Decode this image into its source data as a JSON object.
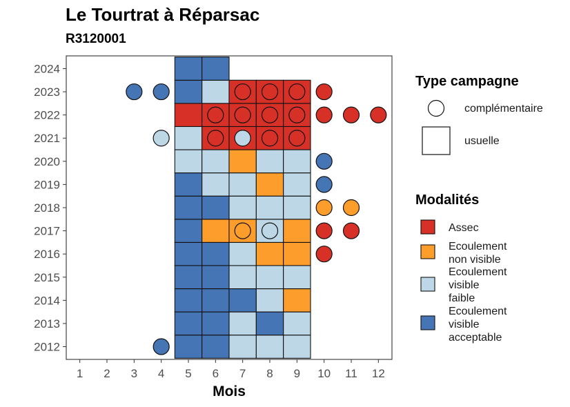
{
  "header": {
    "title": "Le Tourtrat à Réparsac",
    "subtitle": "R3120001"
  },
  "colors": {
    "Assec": "#d73027",
    "Ecoulement non visible": "#fd9d2c",
    "Ecoulement visible faible": "#bdd7e7",
    "Ecoulement visible acceptable": "#4575b4"
  },
  "chart_data": {
    "type": "heatmap",
    "title": "Le Tourtrat à Réparsac",
    "subtitle": "R3120001",
    "xlabel": "Mois",
    "ylabel": "",
    "x_ticks": [
      "1",
      "2",
      "3",
      "4",
      "5",
      "6",
      "7",
      "8",
      "9",
      "10",
      "11",
      "12"
    ],
    "y_ticks": [
      "2012",
      "2013",
      "2014",
      "2015",
      "2016",
      "2017",
      "2018",
      "2019",
      "2020",
      "2021",
      "2022",
      "2023",
      "2024"
    ],
    "x_range": [
      0.5,
      12.5
    ],
    "y_range": [
      2011.45,
      2024.55
    ],
    "legend_campagne": {
      "title": "Type campagne",
      "entries": [
        {
          "key": "complementaire",
          "label": "complémentaire",
          "shape": "circle"
        },
        {
          "key": "usuelle",
          "label": "usuelle",
          "shape": "square"
        }
      ]
    },
    "legend_modalites": {
      "title": "Modalités",
      "entries": [
        {
          "key": "Assec",
          "lines": [
            "Assec"
          ]
        },
        {
          "key": "Ecoulement non visible",
          "lines": [
            "Ecoulement",
            "non visible"
          ]
        },
        {
          "key": "Ecoulement visible faible",
          "lines": [
            "Ecoulement",
            "visible",
            "faible"
          ]
        },
        {
          "key": "Ecoulement visible acceptable",
          "lines": [
            "Ecoulement",
            "visible",
            "acceptable"
          ]
        }
      ]
    },
    "usuelle": [
      {
        "year": 2012,
        "month": 5,
        "modalite": "Ecoulement visible acceptable"
      },
      {
        "year": 2012,
        "month": 6,
        "modalite": "Ecoulement visible acceptable"
      },
      {
        "year": 2012,
        "month": 7,
        "modalite": "Ecoulement visible faible"
      },
      {
        "year": 2012,
        "month": 8,
        "modalite": "Ecoulement visible faible"
      },
      {
        "year": 2012,
        "month": 9,
        "modalite": "Ecoulement visible faible"
      },
      {
        "year": 2013,
        "month": 5,
        "modalite": "Ecoulement visible acceptable"
      },
      {
        "year": 2013,
        "month": 6,
        "modalite": "Ecoulement visible acceptable"
      },
      {
        "year": 2013,
        "month": 7,
        "modalite": "Ecoulement visible faible"
      },
      {
        "year": 2013,
        "month": 8,
        "modalite": "Ecoulement visible acceptable"
      },
      {
        "year": 2013,
        "month": 9,
        "modalite": "Ecoulement visible faible"
      },
      {
        "year": 2014,
        "month": 5,
        "modalite": "Ecoulement visible acceptable"
      },
      {
        "year": 2014,
        "month": 6,
        "modalite": "Ecoulement visible acceptable"
      },
      {
        "year": 2014,
        "month": 7,
        "modalite": "Ecoulement visible acceptable"
      },
      {
        "year": 2014,
        "month": 8,
        "modalite": "Ecoulement visible faible"
      },
      {
        "year": 2014,
        "month": 9,
        "modalite": "Ecoulement non visible"
      },
      {
        "year": 2015,
        "month": 5,
        "modalite": "Ecoulement visible acceptable"
      },
      {
        "year": 2015,
        "month": 6,
        "modalite": "Ecoulement visible acceptable"
      },
      {
        "year": 2015,
        "month": 7,
        "modalite": "Ecoulement visible faible"
      },
      {
        "year": 2015,
        "month": 8,
        "modalite": "Ecoulement visible faible"
      },
      {
        "year": 2015,
        "month": 9,
        "modalite": "Ecoulement visible faible"
      },
      {
        "year": 2016,
        "month": 5,
        "modalite": "Ecoulement visible acceptable"
      },
      {
        "year": 2016,
        "month": 6,
        "modalite": "Ecoulement visible acceptable"
      },
      {
        "year": 2016,
        "month": 7,
        "modalite": "Ecoulement visible faible"
      },
      {
        "year": 2016,
        "month": 8,
        "modalite": "Ecoulement non visible"
      },
      {
        "year": 2016,
        "month": 9,
        "modalite": "Ecoulement non visible"
      },
      {
        "year": 2017,
        "month": 5,
        "modalite": "Ecoulement visible acceptable"
      },
      {
        "year": 2017,
        "month": 6,
        "modalite": "Ecoulement non visible"
      },
      {
        "year": 2017,
        "month": 7,
        "modalite": "Ecoulement non visible"
      },
      {
        "year": 2017,
        "month": 8,
        "modalite": "Ecoulement visible faible"
      },
      {
        "year": 2017,
        "month": 9,
        "modalite": "Ecoulement non visible"
      },
      {
        "year": 2018,
        "month": 5,
        "modalite": "Ecoulement visible acceptable"
      },
      {
        "year": 2018,
        "month": 6,
        "modalite": "Ecoulement visible acceptable"
      },
      {
        "year": 2018,
        "month": 7,
        "modalite": "Ecoulement visible faible"
      },
      {
        "year": 2018,
        "month": 8,
        "modalite": "Ecoulement visible faible"
      },
      {
        "year": 2018,
        "month": 9,
        "modalite": "Ecoulement visible faible"
      },
      {
        "year": 2019,
        "month": 5,
        "modalite": "Ecoulement visible acceptable"
      },
      {
        "year": 2019,
        "month": 6,
        "modalite": "Ecoulement visible faible"
      },
      {
        "year": 2019,
        "month": 7,
        "modalite": "Ecoulement visible faible"
      },
      {
        "year": 2019,
        "month": 8,
        "modalite": "Ecoulement non visible"
      },
      {
        "year": 2019,
        "month": 9,
        "modalite": "Ecoulement visible faible"
      },
      {
        "year": 2020,
        "month": 5,
        "modalite": "Ecoulement visible faible"
      },
      {
        "year": 2020,
        "month": 6,
        "modalite": "Ecoulement visible faible"
      },
      {
        "year": 2020,
        "month": 7,
        "modalite": "Ecoulement non visible"
      },
      {
        "year": 2020,
        "month": 8,
        "modalite": "Ecoulement visible faible"
      },
      {
        "year": 2020,
        "month": 9,
        "modalite": "Ecoulement visible faible"
      },
      {
        "year": 2021,
        "month": 5,
        "modalite": "Ecoulement visible faible"
      },
      {
        "year": 2021,
        "month": 6,
        "modalite": "Assec"
      },
      {
        "year": 2021,
        "month": 7,
        "modalite": "Assec"
      },
      {
        "year": 2021,
        "month": 8,
        "modalite": "Assec"
      },
      {
        "year": 2021,
        "month": 9,
        "modalite": "Assec"
      },
      {
        "year": 2022,
        "month": 5,
        "modalite": "Assec"
      },
      {
        "year": 2022,
        "month": 6,
        "modalite": "Assec"
      },
      {
        "year": 2022,
        "month": 7,
        "modalite": "Assec"
      },
      {
        "year": 2022,
        "month": 8,
        "modalite": "Assec"
      },
      {
        "year": 2022,
        "month": 9,
        "modalite": "Assec"
      },
      {
        "year": 2023,
        "month": 5,
        "modalite": "Ecoulement visible acceptable"
      },
      {
        "year": 2023,
        "month": 6,
        "modalite": "Ecoulement visible faible"
      },
      {
        "year": 2023,
        "month": 7,
        "modalite": "Assec"
      },
      {
        "year": 2023,
        "month": 8,
        "modalite": "Assec"
      },
      {
        "year": 2023,
        "month": 9,
        "modalite": "Assec"
      },
      {
        "year": 2024,
        "month": 5,
        "modalite": "Ecoulement visible acceptable"
      },
      {
        "year": 2024,
        "month": 6,
        "modalite": "Ecoulement visible acceptable"
      }
    ],
    "complementaire": [
      {
        "year": 2012,
        "month": 4,
        "modalite": "Ecoulement visible acceptable"
      },
      {
        "year": 2016,
        "month": 10,
        "modalite": "Assec"
      },
      {
        "year": 2017,
        "month": 7,
        "modalite": "Ecoulement non visible"
      },
      {
        "year": 2017,
        "month": 8,
        "modalite": "Ecoulement visible faible"
      },
      {
        "year": 2017,
        "month": 10,
        "modalite": "Assec"
      },
      {
        "year": 2017,
        "month": 11,
        "modalite": "Assec"
      },
      {
        "year": 2018,
        "month": 10,
        "modalite": "Ecoulement non visible"
      },
      {
        "year": 2018,
        "month": 11,
        "modalite": "Ecoulement non visible"
      },
      {
        "year": 2019,
        "month": 10,
        "modalite": "Ecoulement visible acceptable"
      },
      {
        "year": 2020,
        "month": 10,
        "modalite": "Ecoulement visible acceptable"
      },
      {
        "year": 2021,
        "month": 4,
        "modalite": "Ecoulement visible faible"
      },
      {
        "year": 2021,
        "month": 6,
        "modalite": "Assec"
      },
      {
        "year": 2021,
        "month": 7,
        "modalite": "Ecoulement visible faible"
      },
      {
        "year": 2021,
        "month": 8,
        "modalite": "Assec"
      },
      {
        "year": 2021,
        "month": 9,
        "modalite": "Assec"
      },
      {
        "year": 2022,
        "month": 6,
        "modalite": "Assec"
      },
      {
        "year": 2022,
        "month": 7,
        "modalite": "Assec"
      },
      {
        "year": 2022,
        "month": 8,
        "modalite": "Assec"
      },
      {
        "year": 2022,
        "month": 9,
        "modalite": "Assec"
      },
      {
        "year": 2022,
        "month": 10,
        "modalite": "Assec"
      },
      {
        "year": 2022,
        "month": 11,
        "modalite": "Assec"
      },
      {
        "year": 2022,
        "month": 12,
        "modalite": "Assec"
      },
      {
        "year": 2023,
        "month": 3,
        "modalite": "Ecoulement visible acceptable"
      },
      {
        "year": 2023,
        "month": 4,
        "modalite": "Ecoulement visible acceptable"
      },
      {
        "year": 2023,
        "month": 7,
        "modalite": "Assec"
      },
      {
        "year": 2023,
        "month": 8,
        "modalite": "Assec"
      },
      {
        "year": 2023,
        "month": 9,
        "modalite": "Assec"
      },
      {
        "year": 2023,
        "month": 10,
        "modalite": "Assec"
      }
    ]
  }
}
